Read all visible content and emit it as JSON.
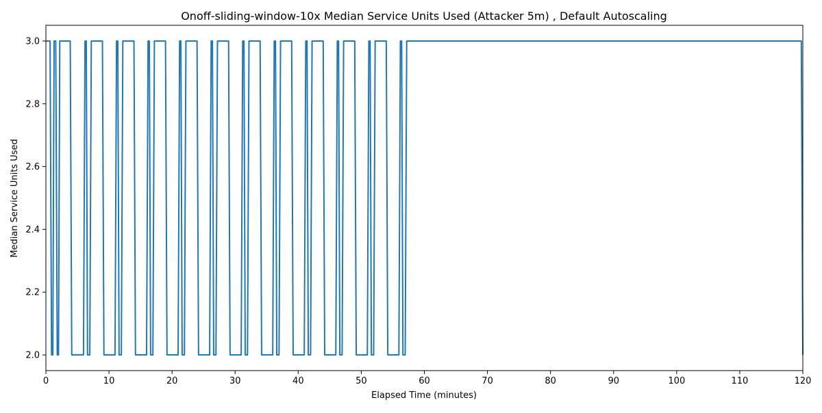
{
  "chart_data": {
    "type": "line",
    "title": "Onoff-sliding-window-10x Median Service Units Used (Attacker 5m) , Default Autoscaling",
    "xlabel": "Elapsed Time (minutes)",
    "ylabel": "Median Service Units Used",
    "xlim": [
      0,
      120
    ],
    "ylim": [
      1.95,
      3.05
    ],
    "xticks": [
      0,
      10,
      20,
      30,
      40,
      50,
      60,
      70,
      80,
      90,
      100,
      110,
      120
    ],
    "xtick_labels": [
      "0",
      "10",
      "20",
      "30",
      "40",
      "50",
      "60",
      "70",
      "80",
      "90",
      "100",
      "110",
      "120"
    ],
    "yticks": [
      2.0,
      2.2,
      2.4,
      2.6,
      2.8,
      3.0
    ],
    "ytick_labels": [
      "2.0",
      "2.2",
      "2.4",
      "2.6",
      "2.8",
      "3.0"
    ],
    "grid": false,
    "legend": "none",
    "series": [
      {
        "color": "#1f77b4",
        "x": [
          0.0,
          0.9,
          1.3,
          1.8,
          2.2,
          4.1,
          6.2,
          6.6,
          7.2,
          9.2,
          11.2,
          11.6,
          12.2,
          14.2,
          16.2,
          16.6,
          17.2,
          19.2,
          21.2,
          21.6,
          22.2,
          24.2,
          26.2,
          26.6,
          27.2,
          29.2,
          31.2,
          31.6,
          32.2,
          34.2,
          36.2,
          36.6,
          37.2,
          39.2,
          41.2,
          41.6,
          42.2,
          44.2,
          46.2,
          46.6,
          47.2,
          49.2,
          51.2,
          51.6,
          52.2,
          54.2,
          56.2,
          56.6,
          57.2,
          120.0
        ],
        "y": [
          3,
          2,
          3,
          2,
          3,
          2,
          3,
          2,
          3,
          2,
          3,
          2,
          3,
          2,
          3,
          2,
          3,
          2,
          3,
          2,
          3,
          2,
          3,
          2,
          3,
          2,
          3,
          2,
          3,
          2,
          3,
          2,
          3,
          2,
          3,
          2,
          3,
          2,
          3,
          2,
          3,
          2,
          3,
          2,
          3,
          2,
          3,
          2,
          3,
          2
        ]
      }
    ]
  }
}
